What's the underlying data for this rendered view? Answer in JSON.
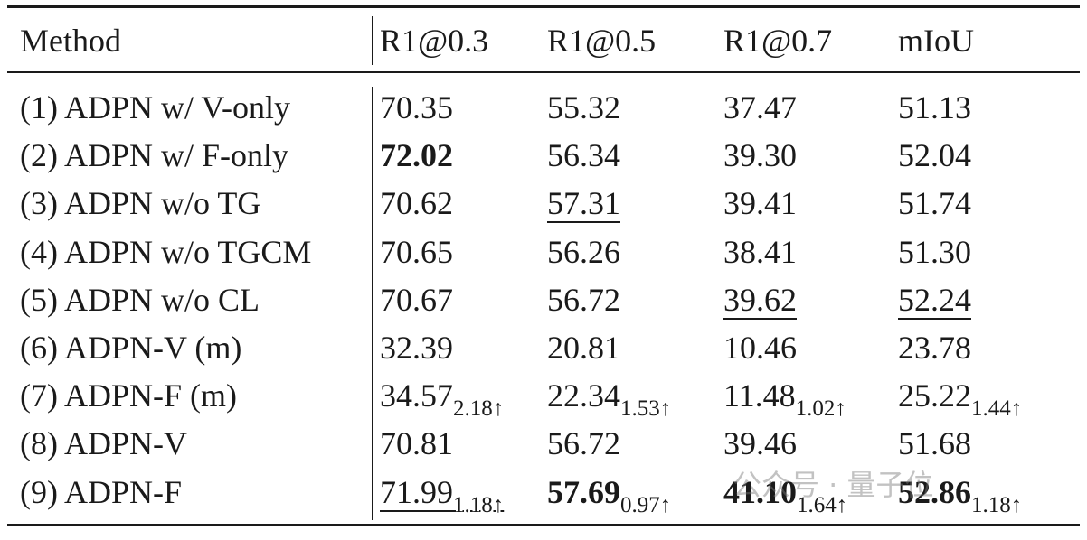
{
  "table": {
    "header": [
      "Method",
      "R1@0.3",
      "R1@0.5",
      "R1@0.7",
      "mIoU"
    ],
    "rows": [
      {
        "method": "(1) ADPN w/ V-only",
        "cells": [
          {
            "text": "70.35"
          },
          {
            "text": "55.32"
          },
          {
            "text": "37.47"
          },
          {
            "text": "51.13"
          }
        ]
      },
      {
        "method": "(2) ADPN w/ F-only",
        "cells": [
          {
            "text": "72.02",
            "bold": true
          },
          {
            "text": "56.34"
          },
          {
            "text": "39.30"
          },
          {
            "text": "52.04"
          }
        ]
      },
      {
        "method": "(3) ADPN w/o TG",
        "cells": [
          {
            "text": "70.62"
          },
          {
            "text": "57.31",
            "underline": true
          },
          {
            "text": "39.41"
          },
          {
            "text": "51.74"
          }
        ]
      },
      {
        "method": "(4) ADPN w/o TGCM",
        "cells": [
          {
            "text": "70.65"
          },
          {
            "text": "56.26"
          },
          {
            "text": "38.41"
          },
          {
            "text": "51.30"
          }
        ]
      },
      {
        "method": "(5) ADPN w/o CL",
        "cells": [
          {
            "text": "70.67"
          },
          {
            "text": "56.72"
          },
          {
            "text": "39.62",
            "underline": true
          },
          {
            "text": "52.24",
            "underline": true
          }
        ]
      },
      {
        "method": "(6) ADPN-V (m)",
        "cells": [
          {
            "text": "32.39"
          },
          {
            "text": "20.81"
          },
          {
            "text": "10.46"
          },
          {
            "text": "23.78"
          }
        ]
      },
      {
        "method": "(7) ADPN-F (m)",
        "cells": [
          {
            "text": "34.57",
            "sub": "2.18↑"
          },
          {
            "text": "22.34",
            "sub": "1.53↑"
          },
          {
            "text": "11.48",
            "sub": "1.02↑"
          },
          {
            "text": "25.22",
            "sub": "1.44↑"
          }
        ]
      },
      {
        "method": "(8) ADPN-V",
        "cells": [
          {
            "text": "70.81"
          },
          {
            "text": "56.72"
          },
          {
            "text": "39.46"
          },
          {
            "text": "51.68"
          }
        ]
      },
      {
        "method": "(9) ADPN-F",
        "cells": [
          {
            "text": "71.99",
            "sub": "1.18↑",
            "underline": true
          },
          {
            "text": "57.69",
            "sub": "0.97↑",
            "bold": true
          },
          {
            "text": "41.10",
            "sub": "1.64↑",
            "bold": true
          },
          {
            "text": "52.86",
            "sub": "1.18↑",
            "bold": true
          }
        ]
      }
    ]
  },
  "watermark": "公众号 · 量子位"
}
